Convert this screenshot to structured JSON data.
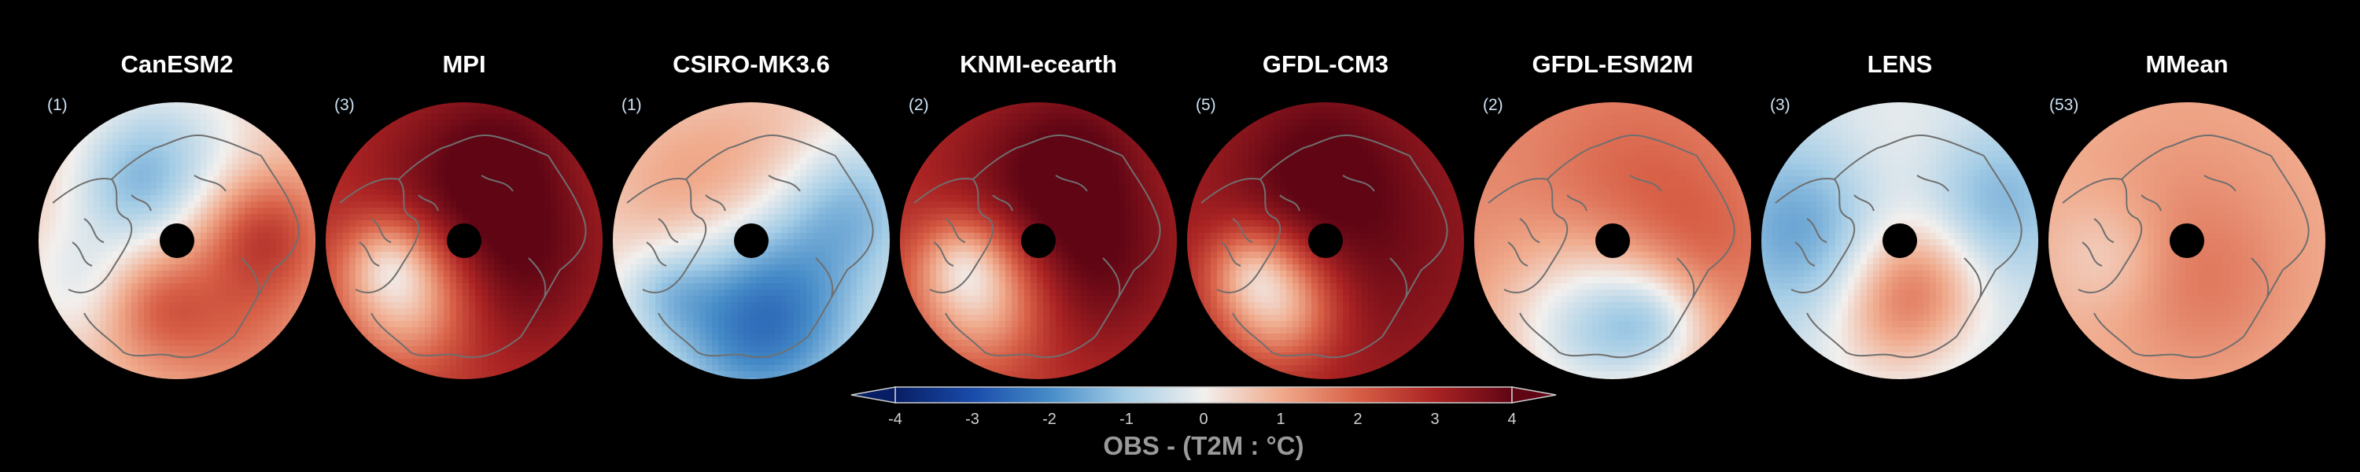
{
  "chart_data": {
    "type": "heatmap",
    "panels": [
      {
        "title": "CanESM2",
        "count": "(1)",
        "pattern": "weak_mixed"
      },
      {
        "title": "MPI",
        "count": "(3)",
        "pattern": "strong_warm"
      },
      {
        "title": "CSIRO-MK3.6",
        "count": "(1)",
        "pattern": "cool_pacific"
      },
      {
        "title": "KNMI-ecearth",
        "count": "(2)",
        "pattern": "strong_warm"
      },
      {
        "title": "GFDL-CM3",
        "count": "(5)",
        "pattern": "very_strong_warm"
      },
      {
        "title": "GFDL-ESM2M",
        "count": "(2)",
        "pattern": "moderate_warm"
      },
      {
        "title": "LENS",
        "count": "(3)",
        "pattern": "cool_atlantic"
      },
      {
        "title": "MMean",
        "count": "(53)",
        "pattern": "weak_warm"
      }
    ],
    "colorbar": {
      "ticks": [
        "-4",
        "-3",
        "-2",
        "-1",
        "0",
        "1",
        "2",
        "3",
        "4"
      ],
      "range": [
        -4,
        4
      ],
      "extend": "both",
      "label": "OBS - (T2M : °C)",
      "colormap": "blue-white-red"
    },
    "colors": {
      "background": "#000000",
      "coastline": "#6f6f6f",
      "pole_hole": "#000000"
    }
  }
}
